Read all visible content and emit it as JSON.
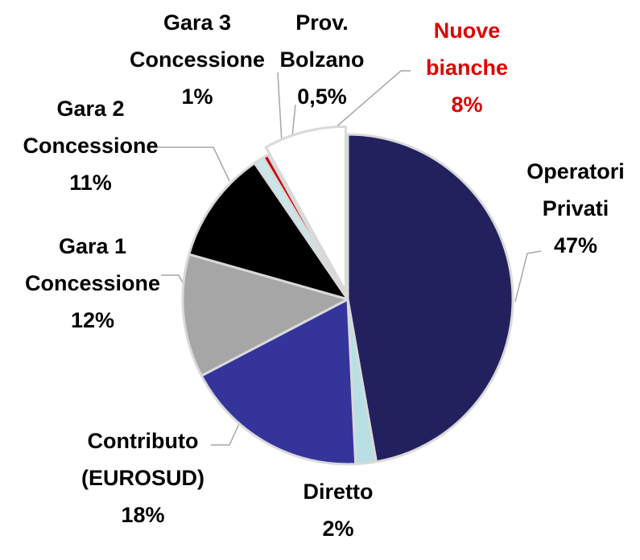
{
  "chart_data": {
    "type": "pie",
    "categories": [
      "Operatori Privati",
      "Diretto",
      "Contributo (EUROSUD)",
      "Gara 1 Concessione",
      "Gara 2 Concessione",
      "Gara 3 Concessione",
      "Prov. Bolzano",
      "Nuove bianche"
    ],
    "values": [
      47,
      2,
      18,
      12,
      11,
      1,
      0.5,
      8
    ],
    "value_labels": [
      "47%",
      "2%",
      "18%",
      "12%",
      "11%",
      "1%",
      "0,5%",
      "8%"
    ],
    "colors": [
      "#22215e",
      "#b8e0e4",
      "#34349a",
      "#a6a6a6",
      "#000000",
      "#c9e6ea",
      "#cc0000",
      "#ffffff"
    ]
  }
}
